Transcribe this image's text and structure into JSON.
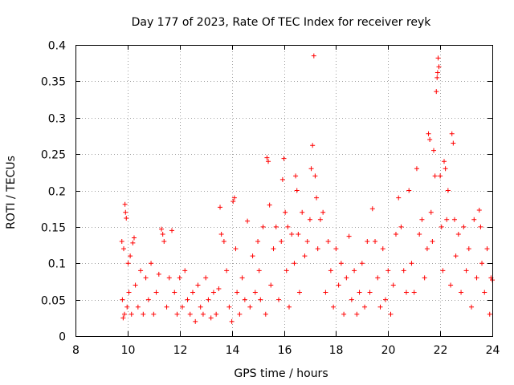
{
  "chart_data": {
    "type": "scatter",
    "title": "Day 177 of 2023, Rate Of TEC Index for receiver reyk",
    "xlabel": "GPS time / hours",
    "ylabel": "ROTI / TECUs",
    "xlim": [
      8,
      24
    ],
    "ylim": [
      0,
      0.4
    ],
    "x_ticks": [
      8,
      10,
      12,
      14,
      16,
      18,
      20,
      22,
      24
    ],
    "x_tick_labels": [
      "8",
      "10",
      "12",
      "14",
      "16",
      "18",
      "20",
      "22",
      "24"
    ],
    "y_ticks": [
      0,
      0.05,
      0.1,
      0.15,
      0.2,
      0.25,
      0.3,
      0.35,
      0.4
    ],
    "y_tick_labels": [
      "0",
      "0.05",
      "0.1",
      "0.15",
      "0.2",
      "0.25",
      "0.3",
      "0.35",
      "0.4"
    ],
    "grid": true,
    "marker": "+",
    "series": [
      {
        "name": "ROTI",
        "color": "#ff0000",
        "points": [
          [
            9.78,
            0.13
          ],
          [
            9.8,
            0.05
          ],
          [
            9.83,
            0.025
          ],
          [
            9.85,
            0.12
          ],
          [
            9.88,
            0.03
          ],
          [
            9.9,
            0.181
          ],
          [
            9.92,
            0.17
          ],
          [
            9.95,
            0.162
          ],
          [
            9.98,
            0.04
          ],
          [
            10.02,
            0.1
          ],
          [
            10.05,
            0.06
          ],
          [
            10.1,
            0.11
          ],
          [
            10.15,
            0.03
          ],
          [
            10.2,
            0.128
          ],
          [
            10.25,
            0.135
          ],
          [
            10.3,
            0.07
          ],
          [
            10.4,
            0.04
          ],
          [
            10.5,
            0.09
          ],
          [
            10.6,
            0.03
          ],
          [
            10.7,
            0.08
          ],
          [
            10.8,
            0.05
          ],
          [
            10.9,
            0.1
          ],
          [
            11.0,
            0.03
          ],
          [
            11.1,
            0.06
          ],
          [
            11.2,
            0.085
          ],
          [
            11.3,
            0.147
          ],
          [
            11.35,
            0.14
          ],
          [
            11.4,
            0.13
          ],
          [
            11.5,
            0.04
          ],
          [
            11.6,
            0.08
          ],
          [
            11.7,
            0.145
          ],
          [
            11.8,
            0.06
          ],
          [
            11.9,
            0.03
          ],
          [
            12.0,
            0.08
          ],
          [
            12.1,
            0.04
          ],
          [
            12.2,
            0.09
          ],
          [
            12.3,
            0.05
          ],
          [
            12.4,
            0.03
          ],
          [
            12.5,
            0.06
          ],
          [
            12.6,
            0.02
          ],
          [
            12.7,
            0.07
          ],
          [
            12.8,
            0.04
          ],
          [
            12.9,
            0.03
          ],
          [
            13.0,
            0.08
          ],
          [
            13.1,
            0.05
          ],
          [
            13.2,
            0.025
          ],
          [
            13.3,
            0.06
          ],
          [
            13.4,
            0.03
          ],
          [
            13.5,
            0.065
          ],
          [
            13.55,
            0.177
          ],
          [
            13.6,
            0.14
          ],
          [
            13.7,
            0.13
          ],
          [
            13.8,
            0.09
          ],
          [
            13.9,
            0.04
          ],
          [
            14.0,
            0.02
          ],
          [
            14.05,
            0.185
          ],
          [
            14.1,
            0.19
          ],
          [
            14.15,
            0.12
          ],
          [
            14.2,
            0.06
          ],
          [
            14.3,
            0.03
          ],
          [
            14.4,
            0.08
          ],
          [
            14.5,
            0.05
          ],
          [
            14.6,
            0.158
          ],
          [
            14.7,
            0.04
          ],
          [
            14.8,
            0.11
          ],
          [
            14.9,
            0.06
          ],
          [
            15.0,
            0.13
          ],
          [
            15.05,
            0.09
          ],
          [
            15.1,
            0.05
          ],
          [
            15.2,
            0.15
          ],
          [
            15.3,
            0.03
          ],
          [
            15.35,
            0.245
          ],
          [
            15.4,
            0.24
          ],
          [
            15.45,
            0.18
          ],
          [
            15.5,
            0.07
          ],
          [
            15.6,
            0.12
          ],
          [
            15.7,
            0.15
          ],
          [
            15.8,
            0.05
          ],
          [
            15.9,
            0.13
          ],
          [
            15.95,
            0.215
          ],
          [
            16.0,
            0.244
          ],
          [
            16.05,
            0.17
          ],
          [
            16.1,
            0.09
          ],
          [
            16.15,
            0.15
          ],
          [
            16.2,
            0.04
          ],
          [
            16.3,
            0.14
          ],
          [
            16.4,
            0.1
          ],
          [
            16.45,
            0.22
          ],
          [
            16.5,
            0.2
          ],
          [
            16.55,
            0.14
          ],
          [
            16.6,
            0.06
          ],
          [
            16.7,
            0.17
          ],
          [
            16.8,
            0.11
          ],
          [
            16.9,
            0.13
          ],
          [
            17.0,
            0.16
          ],
          [
            17.05,
            0.23
          ],
          [
            17.1,
            0.262
          ],
          [
            17.15,
            0.385
          ],
          [
            17.2,
            0.22
          ],
          [
            17.25,
            0.19
          ],
          [
            17.3,
            0.12
          ],
          [
            17.4,
            0.16
          ],
          [
            17.5,
            0.17
          ],
          [
            17.6,
            0.06
          ],
          [
            17.7,
            0.13
          ],
          [
            17.8,
            0.09
          ],
          [
            17.9,
            0.04
          ],
          [
            18.0,
            0.12
          ],
          [
            18.1,
            0.07
          ],
          [
            18.2,
            0.1
          ],
          [
            18.3,
            0.03
          ],
          [
            18.4,
            0.08
          ],
          [
            18.5,
            0.137
          ],
          [
            18.6,
            0.05
          ],
          [
            18.7,
            0.09
          ],
          [
            18.8,
            0.03
          ],
          [
            18.9,
            0.06
          ],
          [
            19.0,
            0.1
          ],
          [
            19.1,
            0.04
          ],
          [
            19.2,
            0.13
          ],
          [
            19.3,
            0.06
          ],
          [
            19.4,
            0.175
          ],
          [
            19.5,
            0.13
          ],
          [
            19.6,
            0.08
          ],
          [
            19.7,
            0.04
          ],
          [
            19.8,
            0.12
          ],
          [
            19.9,
            0.05
          ],
          [
            20.0,
            0.09
          ],
          [
            20.1,
            0.03
          ],
          [
            20.2,
            0.07
          ],
          [
            20.3,
            0.14
          ],
          [
            20.4,
            0.19
          ],
          [
            20.5,
            0.15
          ],
          [
            20.6,
            0.09
          ],
          [
            20.7,
            0.06
          ],
          [
            20.8,
            0.2
          ],
          [
            20.9,
            0.1
          ],
          [
            21.0,
            0.06
          ],
          [
            21.1,
            0.23
          ],
          [
            21.2,
            0.14
          ],
          [
            21.3,
            0.16
          ],
          [
            21.4,
            0.08
          ],
          [
            21.5,
            0.12
          ],
          [
            21.55,
            0.278
          ],
          [
            21.6,
            0.27
          ],
          [
            21.65,
            0.17
          ],
          [
            21.7,
            0.13
          ],
          [
            21.75,
            0.255
          ],
          [
            21.8,
            0.22
          ],
          [
            21.85,
            0.336
          ],
          [
            21.88,
            0.355
          ],
          [
            21.9,
            0.362
          ],
          [
            21.92,
            0.382
          ],
          [
            21.95,
            0.37
          ],
          [
            22.0,
            0.22
          ],
          [
            22.05,
            0.15
          ],
          [
            22.1,
            0.09
          ],
          [
            22.15,
            0.24
          ],
          [
            22.2,
            0.23
          ],
          [
            22.25,
            0.16
          ],
          [
            22.3,
            0.2
          ],
          [
            22.4,
            0.07
          ],
          [
            22.45,
            0.278
          ],
          [
            22.5,
            0.265
          ],
          [
            22.55,
            0.16
          ],
          [
            22.6,
            0.11
          ],
          [
            22.7,
            0.14
          ],
          [
            22.8,
            0.06
          ],
          [
            22.9,
            0.15
          ],
          [
            23.0,
            0.09
          ],
          [
            23.1,
            0.12
          ],
          [
            23.2,
            0.04
          ],
          [
            23.3,
            0.16
          ],
          [
            23.4,
            0.08
          ],
          [
            23.5,
            0.173
          ],
          [
            23.55,
            0.15
          ],
          [
            23.6,
            0.1
          ],
          [
            23.7,
            0.06
          ],
          [
            23.8,
            0.12
          ],
          [
            23.9,
            0.03
          ],
          [
            23.95,
            0.08
          ],
          [
            24.0,
            0.077
          ]
        ]
      }
    ]
  }
}
